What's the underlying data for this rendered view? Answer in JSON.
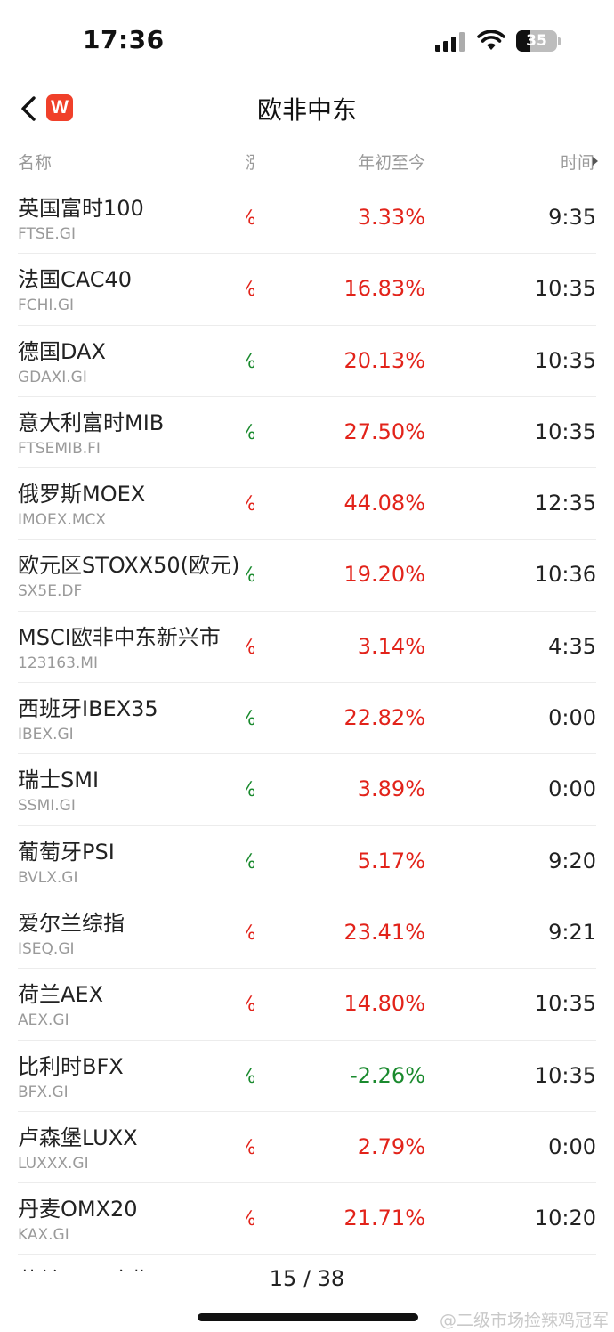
{
  "status": {
    "time": "17:36",
    "battery": "35",
    "battery_level": 0.35
  },
  "nav": {
    "title": "欧非中东",
    "logo_text": "W"
  },
  "columns": {
    "name": "名称",
    "hidden": "涨幅",
    "ytd": "年初至今",
    "time": "时间"
  },
  "colors": {
    "up": "#e2231a",
    "down": "#1a8a2e"
  },
  "rows": [
    {
      "name": "英国富时100",
      "code": "FTSE.GI",
      "ytd": "3.33%",
      "time": "9:35",
      "clip": "%",
      "clip_dir": "up",
      "ytd_dir": "up"
    },
    {
      "name": "法国CAC40",
      "code": "FCHI.GI",
      "ytd": "16.83%",
      "time": "10:35",
      "clip": "%",
      "clip_dir": "up",
      "ytd_dir": "up"
    },
    {
      "name": "德国DAX",
      "code": "GDAXI.GI",
      "ytd": "20.13%",
      "time": "10:35",
      "clip": "%",
      "clip_dir": "down",
      "ytd_dir": "up"
    },
    {
      "name": "意大利富时MIB",
      "code": "FTSEMIB.FI",
      "ytd": "27.50%",
      "time": "10:35",
      "clip": "%",
      "clip_dir": "down",
      "ytd_dir": "up"
    },
    {
      "name": "俄罗斯MOEX",
      "code": "IMOEX.MCX",
      "ytd": "44.08%",
      "time": "12:35",
      "clip": "%",
      "clip_dir": "up",
      "ytd_dir": "up"
    },
    {
      "name": "欧元区STOXX50(欧元)",
      "code": "SX5E.DF",
      "ytd": "19.20%",
      "time": "10:36",
      "clip": "%",
      "clip_dir": "down",
      "ytd_dir": "up"
    },
    {
      "name": "MSCI欧非中东新兴市",
      "code": "123163.MI",
      "ytd": "3.14%",
      "time": "4:35",
      "clip": "%",
      "clip_dir": "up",
      "ytd_dir": "up"
    },
    {
      "name": "西班牙IBEX35",
      "code": "IBEX.GI",
      "ytd": "22.82%",
      "time": "0:00",
      "clip": "%",
      "clip_dir": "down",
      "ytd_dir": "up"
    },
    {
      "name": "瑞士SMI",
      "code": "SSMI.GI",
      "ytd": "3.89%",
      "time": "0:00",
      "clip": "%",
      "clip_dir": "down",
      "ytd_dir": "up"
    },
    {
      "name": "葡萄牙PSI",
      "code": "BVLX.GI",
      "ytd": "5.17%",
      "time": "9:20",
      "clip": "%",
      "clip_dir": "down",
      "ytd_dir": "up"
    },
    {
      "name": "爱尔兰综指",
      "code": "ISEQ.GI",
      "ytd": "23.41%",
      "time": "9:21",
      "clip": "%",
      "clip_dir": "up",
      "ytd_dir": "up"
    },
    {
      "name": "荷兰AEX",
      "code": "AEX.GI",
      "ytd": "14.80%",
      "time": "10:35",
      "clip": "%",
      "clip_dir": "up",
      "ytd_dir": "up"
    },
    {
      "name": "比利时BFX",
      "code": "BFX.GI",
      "ytd": "-2.26%",
      "time": "10:35",
      "clip": "%",
      "clip_dir": "down",
      "ytd_dir": "down"
    },
    {
      "name": "卢森堡LUXX",
      "code": "LUXXX.GI",
      "ytd": "2.79%",
      "time": "0:00",
      "clip": "%",
      "clip_dir": "up",
      "ytd_dir": "up"
    },
    {
      "name": "丹麦OMX20",
      "code": "KAX.GI",
      "ytd": "21.71%",
      "time": "10:20",
      "clip": "%",
      "clip_dir": "up",
      "ytd_dir": "up"
    },
    {
      "name": "芬兰OMX全指",
      "code": "",
      "ytd": "",
      "time": "",
      "clip": "",
      "clip_dir": "up",
      "ytd_dir": "up"
    }
  ],
  "pager": {
    "text": "15 / 38"
  },
  "watermark": "@二级市场捡辣鸡冠军"
}
